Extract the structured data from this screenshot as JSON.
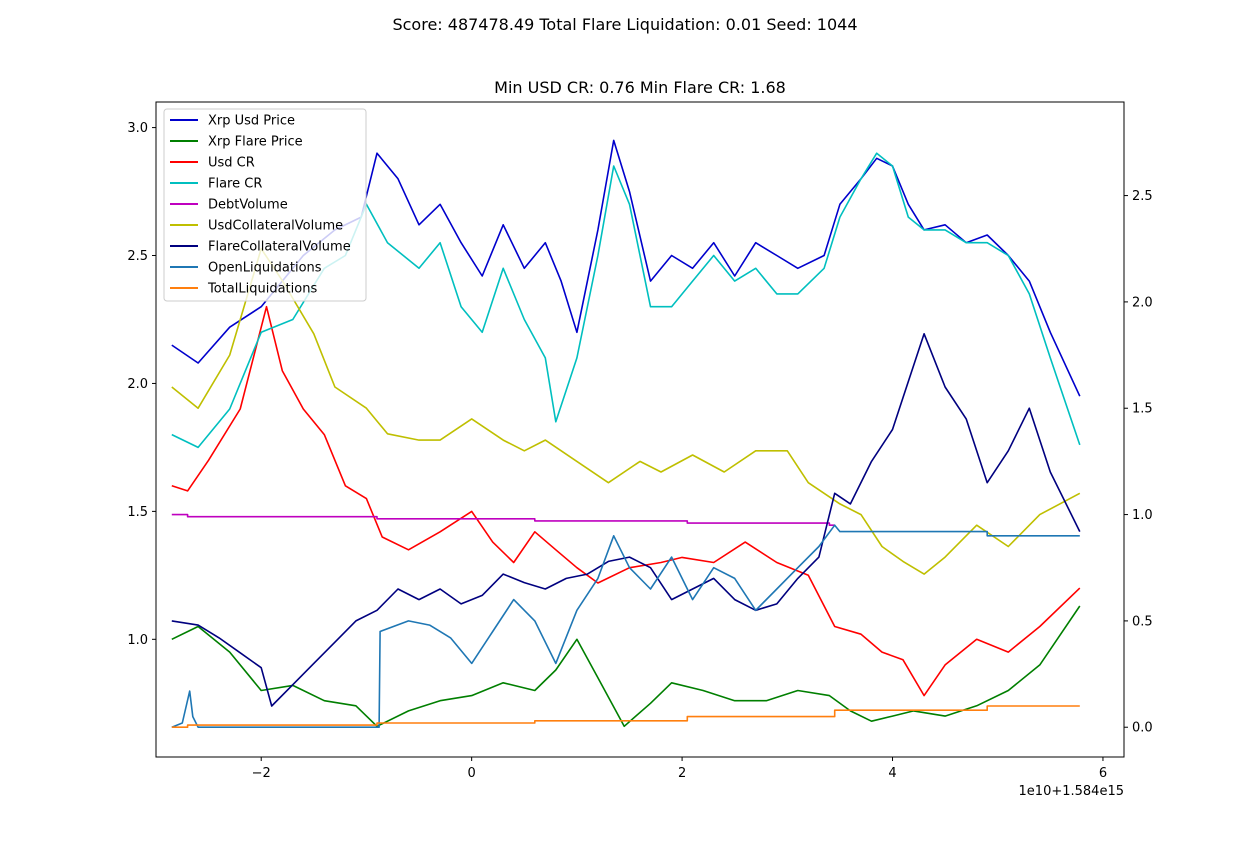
{
  "suptitle": "Score: 487478.49 Total Flare Liquidation: 0.01 Seed: 1044",
  "chart_data": {
    "type": "line",
    "title": "Min USD CR: 0.76 Min Flare CR: 1.68",
    "xlabel": "",
    "ylabel": "",
    "x_offset_label": "1e10+1.584e15",
    "xlim": [
      -3.0,
      6.2
    ],
    "ylim_left": [
      0.54,
      3.1
    ],
    "ylim_right": [
      -0.14,
      2.94
    ],
    "x_ticks": [
      -2,
      0,
      2,
      4,
      6
    ],
    "y_left_ticks": [
      "1.0",
      "1.5",
      "2.0",
      "2.5",
      "3.0"
    ],
    "y_right_ticks": [
      "0.0",
      "0.5",
      "1.0",
      "1.5",
      "2.0",
      "2.5"
    ],
    "grid": false,
    "legend_position": "upper-left",
    "series": [
      {
        "name": "Xrp Usd Price",
        "color": "#0000cc",
        "axis": "left",
        "x": [
          -2.85,
          -2.6,
          -2.3,
          -2.0,
          -1.6,
          -1.3,
          -1.05,
          -0.9,
          -0.7,
          -0.5,
          -0.3,
          -0.1,
          0.1,
          0.3,
          0.5,
          0.7,
          0.85,
          1.0,
          1.2,
          1.35,
          1.5,
          1.7,
          1.9,
          2.1,
          2.3,
          2.5,
          2.7,
          2.9,
          3.1,
          3.35,
          3.5,
          3.7,
          3.85,
          4.0,
          4.15,
          4.3,
          4.5,
          4.7,
          4.9,
          5.1,
          5.3,
          5.5,
          5.78
        ],
        "y": [
          2.15,
          2.08,
          2.22,
          2.3,
          2.5,
          2.6,
          2.65,
          2.9,
          2.8,
          2.62,
          2.7,
          2.55,
          2.42,
          2.62,
          2.45,
          2.55,
          2.4,
          2.2,
          2.6,
          2.95,
          2.75,
          2.4,
          2.5,
          2.45,
          2.55,
          2.42,
          2.55,
          2.5,
          2.45,
          2.5,
          2.7,
          2.8,
          2.88,
          2.85,
          2.7,
          2.6,
          2.62,
          2.55,
          2.58,
          2.5,
          2.4,
          2.2,
          1.95
        ]
      },
      {
        "name": "Xrp Flare Price",
        "color": "#007f00",
        "axis": "left",
        "x": [
          -2.85,
          -2.6,
          -2.3,
          -2.0,
          -1.7,
          -1.4,
          -1.1,
          -0.9,
          -0.6,
          -0.3,
          0.0,
          0.3,
          0.6,
          0.8,
          1.0,
          1.2,
          1.45,
          1.7,
          1.9,
          2.2,
          2.5,
          2.8,
          3.1,
          3.4,
          3.6,
          3.8,
          4.0,
          4.2,
          4.5,
          4.8,
          5.1,
          5.4,
          5.78
        ],
        "y": [
          1.0,
          1.05,
          0.95,
          0.8,
          0.82,
          0.76,
          0.74,
          0.66,
          0.72,
          0.76,
          0.78,
          0.83,
          0.8,
          0.88,
          1.0,
          0.85,
          0.66,
          0.75,
          0.83,
          0.8,
          0.76,
          0.76,
          0.8,
          0.78,
          0.72,
          0.68,
          0.7,
          0.72,
          0.7,
          0.74,
          0.8,
          0.9,
          1.13
        ]
      },
      {
        "name": "Usd CR",
        "color": "#ff0000",
        "axis": "left",
        "x": [
          -2.85,
          -2.7,
          -2.5,
          -2.2,
          -1.95,
          -1.8,
          -1.6,
          -1.4,
          -1.2,
          -1.0,
          -0.85,
          -0.6,
          -0.3,
          0.0,
          0.2,
          0.4,
          0.6,
          0.8,
          1.0,
          1.2,
          1.5,
          1.8,
          2.0,
          2.3,
          2.6,
          2.9,
          3.2,
          3.45,
          3.7,
          3.9,
          4.1,
          4.3,
          4.5,
          4.8,
          5.1,
          5.4,
          5.78
        ],
        "y": [
          1.6,
          1.58,
          1.7,
          1.9,
          2.3,
          2.05,
          1.9,
          1.8,
          1.6,
          1.55,
          1.4,
          1.35,
          1.42,
          1.5,
          1.38,
          1.3,
          1.42,
          1.35,
          1.28,
          1.22,
          1.28,
          1.3,
          1.32,
          1.3,
          1.38,
          1.3,
          1.25,
          1.05,
          1.02,
          0.95,
          0.92,
          0.78,
          0.9,
          1.0,
          0.95,
          1.05,
          1.2
        ]
      },
      {
        "name": "Flare CR",
        "color": "#00bfbf",
        "axis": "left",
        "x": [
          -2.85,
          -2.6,
          -2.3,
          -2.0,
          -1.7,
          -1.4,
          -1.2,
          -1.0,
          -0.8,
          -0.5,
          -0.3,
          -0.1,
          0.1,
          0.3,
          0.5,
          0.7,
          0.8,
          1.0,
          1.2,
          1.35,
          1.5,
          1.7,
          1.9,
          2.1,
          2.3,
          2.5,
          2.7,
          2.9,
          3.1,
          3.35,
          3.5,
          3.7,
          3.85,
          4.0,
          4.15,
          4.3,
          4.5,
          4.7,
          4.9,
          5.1,
          5.3,
          5.5,
          5.78
        ],
        "y": [
          1.8,
          1.75,
          1.9,
          2.2,
          2.25,
          2.45,
          2.5,
          2.7,
          2.55,
          2.45,
          2.55,
          2.3,
          2.2,
          2.45,
          2.25,
          2.1,
          1.85,
          2.1,
          2.5,
          2.85,
          2.7,
          2.3,
          2.3,
          2.4,
          2.5,
          2.4,
          2.45,
          2.35,
          2.35,
          2.45,
          2.65,
          2.8,
          2.9,
          2.85,
          2.65,
          2.6,
          2.6,
          2.55,
          2.55,
          2.5,
          2.35,
          2.1,
          1.76
        ]
      },
      {
        "name": "DebtVolume",
        "color": "#bf00bf",
        "axis": "right",
        "x": [
          -2.85,
          -2.7,
          -2.7,
          -0.9,
          -0.9,
          0.6,
          0.6,
          2.05,
          2.05,
          3.4,
          3.4,
          3.45
        ],
        "y": [
          1.0,
          1.0,
          0.99,
          0.99,
          0.98,
          0.98,
          0.97,
          0.97,
          0.96,
          0.96,
          0.95,
          0.95
        ]
      },
      {
        "name": "UsdCollateralVolume",
        "color": "#bfbf00",
        "axis": "right",
        "x": [
          -2.85,
          -2.6,
          -2.3,
          -2.0,
          -1.8,
          -1.5,
          -1.3,
          -1.0,
          -0.8,
          -0.5,
          -0.3,
          0.0,
          0.3,
          0.5,
          0.7,
          1.0,
          1.3,
          1.6,
          1.8,
          2.1,
          2.4,
          2.7,
          3.0,
          3.2,
          3.5,
          3.7,
          3.9,
          4.1,
          4.3,
          4.5,
          4.8,
          5.1,
          5.4,
          5.78
        ],
        "y": [
          1.6,
          1.5,
          1.75,
          2.25,
          2.1,
          1.85,
          1.6,
          1.5,
          1.38,
          1.35,
          1.35,
          1.45,
          1.35,
          1.3,
          1.35,
          1.25,
          1.15,
          1.25,
          1.2,
          1.28,
          1.2,
          1.3,
          1.3,
          1.15,
          1.05,
          1.0,
          0.85,
          0.78,
          0.72,
          0.8,
          0.95,
          0.85,
          1.0,
          1.1
        ]
      },
      {
        "name": "FlareCollateralVolume",
        "color": "#00007f",
        "axis": "right",
        "x": [
          -2.85,
          -2.6,
          -2.4,
          -2.2,
          -2.0,
          -1.9,
          -1.7,
          -1.5,
          -1.3,
          -1.1,
          -0.9,
          -0.7,
          -0.5,
          -0.3,
          -0.1,
          0.1,
          0.3,
          0.5,
          0.7,
          0.9,
          1.1,
          1.3,
          1.5,
          1.7,
          1.9,
          2.1,
          2.3,
          2.5,
          2.7,
          2.9,
          3.1,
          3.3,
          3.45,
          3.6,
          3.8,
          4.0,
          4.1,
          4.3,
          4.5,
          4.7,
          4.9,
          5.1,
          5.3,
          5.5,
          5.78
        ],
        "y": [
          0.5,
          0.48,
          0.42,
          0.35,
          0.28,
          0.1,
          0.2,
          0.3,
          0.4,
          0.5,
          0.55,
          0.65,
          0.6,
          0.65,
          0.58,
          0.62,
          0.72,
          0.68,
          0.65,
          0.7,
          0.72,
          0.78,
          0.8,
          0.75,
          0.6,
          0.65,
          0.7,
          0.6,
          0.55,
          0.58,
          0.7,
          0.8,
          1.1,
          1.05,
          1.25,
          1.4,
          1.55,
          1.85,
          1.6,
          1.45,
          1.15,
          1.3,
          1.5,
          1.2,
          0.92
        ]
      },
      {
        "name": "OpenLiquidations",
        "color": "#1f77b4",
        "axis": "right",
        "x": [
          -2.85,
          -2.75,
          -2.68,
          -2.65,
          -2.6,
          -0.88,
          -0.87,
          -0.6,
          -0.4,
          -0.2,
          0.0,
          0.2,
          0.4,
          0.6,
          0.8,
          1.0,
          1.2,
          1.35,
          1.5,
          1.7,
          1.9,
          2.1,
          2.3,
          2.5,
          2.7,
          2.9,
          3.1,
          3.3,
          3.45,
          3.5,
          3.9,
          4.9,
          4.9,
          5.78
        ],
        "y": [
          0.0,
          0.02,
          0.17,
          0.05,
          0.0,
          0.0,
          0.45,
          0.5,
          0.48,
          0.42,
          0.3,
          0.45,
          0.6,
          0.5,
          0.3,
          0.55,
          0.7,
          0.9,
          0.75,
          0.65,
          0.8,
          0.6,
          0.75,
          0.7,
          0.55,
          0.65,
          0.75,
          0.85,
          0.95,
          0.92,
          0.92,
          0.92,
          0.9,
          0.9
        ]
      },
      {
        "name": "TotalLiquidations",
        "color": "#ff7f0e",
        "axis": "right",
        "x": [
          -2.85,
          -2.7,
          -2.7,
          -0.9,
          -0.9,
          0.6,
          0.6,
          2.05,
          2.05,
          3.45,
          3.45,
          4.9,
          4.9,
          5.78
        ],
        "y": [
          0.0,
          0.0,
          0.01,
          0.01,
          0.02,
          0.02,
          0.03,
          0.03,
          0.05,
          0.05,
          0.08,
          0.08,
          0.1,
          0.1
        ]
      }
    ]
  }
}
